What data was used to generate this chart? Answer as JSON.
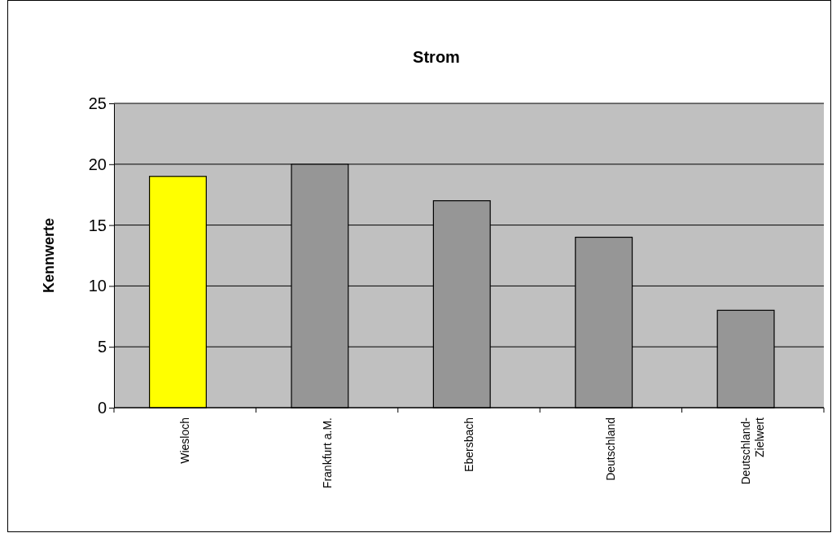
{
  "chart_data": {
    "type": "bar",
    "title": "Strom",
    "ylabel": "Kennwerte",
    "categories": [
      "Wiesloch",
      "Frankfurt a.M.",
      "Ebersbach",
      "Deutschland",
      "Deutschland-Zielwert"
    ],
    "values": [
      19,
      20,
      17,
      14,
      8
    ],
    "colors": [
      "#ffff00",
      "#969696",
      "#969696",
      "#969696",
      "#969696"
    ],
    "ylim": [
      0,
      25
    ],
    "yticks": [
      0,
      5,
      10,
      15,
      20,
      25
    ],
    "grid": "y"
  }
}
